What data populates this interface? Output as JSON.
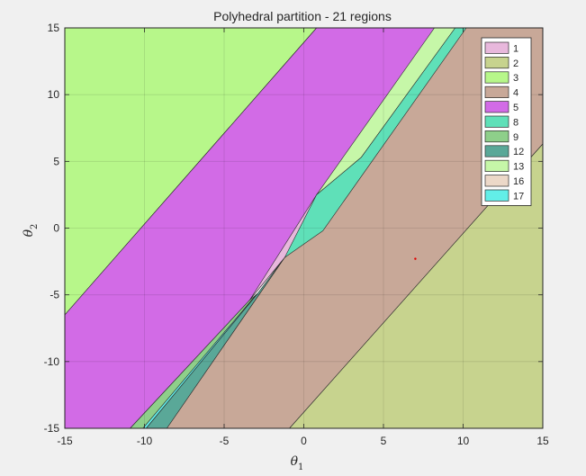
{
  "chart_data": {
    "type": "area",
    "title": "Polyhedral partition - 21 regions",
    "xlabel": "θ",
    "xlabel_sub": "1",
    "ylabel": "θ",
    "ylabel_sub": "2",
    "xlim": [
      -15,
      15
    ],
    "ylim": [
      -15,
      15
    ],
    "x_ticks": [
      -15,
      -10,
      -5,
      0,
      5,
      10,
      15
    ],
    "y_ticks": [
      -15,
      -10,
      -5,
      0,
      5,
      10,
      15
    ],
    "grid": true,
    "legend_position": "top-right",
    "regions": [
      {
        "name": "3",
        "color": "#b7f78a",
        "vertices": [
          [
            -15,
            -6.5
          ],
          [
            -15,
            15
          ],
          [
            0.8,
            15
          ]
        ]
      },
      {
        "name": "5",
        "color": "#d26be6",
        "vertices": [
          [
            -15,
            -15
          ],
          [
            -15,
            -6.5
          ],
          [
            0.8,
            15
          ],
          [
            8.2,
            15
          ],
          [
            -1.2,
            -2.2
          ],
          [
            -3.4,
            -5.4
          ],
          [
            -10.9,
            -15
          ]
        ]
      },
      {
        "name": "4",
        "color": "#c8a898",
        "vertices": [
          [
            -8.6,
            -15
          ],
          [
            -1.2,
            -2.2
          ],
          [
            1.5,
            0.5
          ],
          [
            9.5,
            15
          ],
          [
            15,
            15
          ],
          [
            15,
            6.3
          ],
          [
            -0.9,
            -15
          ]
        ]
      },
      {
        "name": "2",
        "color": "#c7d38e",
        "vertices": [
          [
            -0.9,
            -15
          ],
          [
            15,
            6.3
          ],
          [
            15,
            -15
          ]
        ]
      },
      {
        "name": "9",
        "color": "#8ecf8a",
        "vertices": [
          [
            -10.9,
            -15
          ],
          [
            -3.4,
            -5.4
          ],
          [
            -2.9,
            -4.9
          ],
          [
            -9.9,
            -15
          ]
        ]
      },
      {
        "name": "12",
        "color": "#5aa898",
        "vertices": [
          [
            -9.9,
            -15
          ],
          [
            -2.9,
            -4.9
          ],
          [
            -1.2,
            -2.2
          ],
          [
            -8.6,
            -15
          ]
        ]
      },
      {
        "name": "17",
        "color": "#62eee8",
        "vertices": [
          [
            -10.1,
            -15
          ],
          [
            -9.9,
            -15
          ],
          [
            -2.9,
            -4.9
          ],
          [
            -3.0,
            -5.0
          ]
        ]
      },
      {
        "name": "1",
        "color": "#e8b8dc",
        "vertices": [
          [
            -3.4,
            -5.4
          ],
          [
            -1.2,
            -2.2
          ],
          [
            1.5,
            0.5
          ],
          [
            3.6,
            5.3
          ],
          [
            0.8,
            2.5
          ]
        ]
      },
      {
        "name": "8",
        "color": "#5fe0b8",
        "vertices": [
          [
            -1.2,
            -2.2
          ],
          [
            0.8,
            2.5
          ],
          [
            3.6,
            5.3
          ],
          [
            9.5,
            15
          ],
          [
            10.2,
            15
          ],
          [
            1.2,
            -0.2
          ]
        ]
      },
      {
        "name": "13",
        "color": "#c6f7a8",
        "vertices": [
          [
            0.8,
            2.5
          ],
          [
            3.6,
            5.3
          ],
          [
            9.5,
            15
          ],
          [
            8.2,
            15
          ]
        ]
      },
      {
        "name": "16",
        "color": "#ecd8c8",
        "vertices": []
      }
    ],
    "legend": [
      "1",
      "2",
      "3",
      "4",
      "5",
      "8",
      "9",
      "12",
      "13",
      "16",
      "17"
    ],
    "annotation_point": {
      "x": 7.0,
      "y": -2.3,
      "color": "#e00000"
    }
  }
}
